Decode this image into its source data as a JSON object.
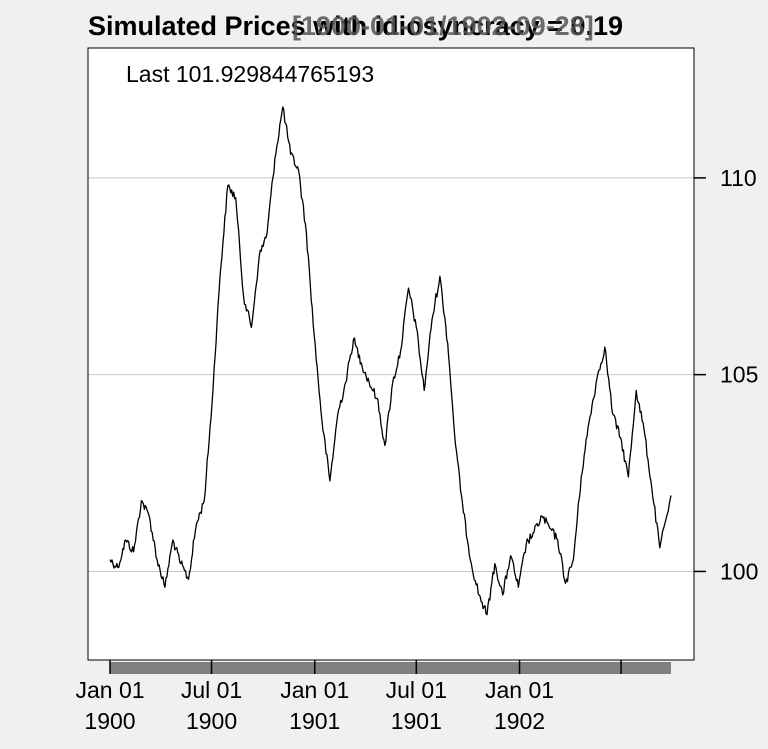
{
  "chart_data": {
    "type": "line",
    "title": "Simulated Prices with idiosyncracy = 0.19",
    "title_range": "[1900-01-01/1902-09-28]",
    "annotation": "Last 101.929844765193",
    "x_range": [
      "1900-01-01",
      "1902-09-28"
    ],
    "ylim": [
      97.75,
      113.3
    ],
    "y_ticks": [
      100,
      105,
      110
    ],
    "y_tick_labels": [
      "100",
      "105",
      "110"
    ],
    "x_ticks": [
      "1900-01-01",
      "1900-07-01",
      "1901-01-01",
      "1901-07-01",
      "1902-01-01"
    ],
    "x_tick_labels": [
      {
        "month": "Jan 01",
        "year": "1900"
      },
      {
        "month": "Jul 01",
        "year": "1900"
      },
      {
        "month": "Jan 01",
        "year": "1901"
      },
      {
        "month": "Jul 01",
        "year": "1901"
      },
      {
        "month": "Jan 01",
        "year": "1902"
      }
    ],
    "y_axis_side": "right",
    "grid": "horizontal",
    "line_color": "#000000",
    "grid_color": "#c8c8c8",
    "x_band_color": "#7f7f7f",
    "series": [
      {
        "x": [
          "1900-01-01",
          "1900-01-15",
          "1900-01-29",
          "1900-02-12",
          "1900-02-26",
          "1900-03-12",
          "1900-03-26",
          "1900-04-09",
          "1900-04-23",
          "1900-05-07",
          "1900-05-21",
          "1900-06-04",
          "1900-06-18",
          "1900-07-02",
          "1900-07-16",
          "1900-07-30",
          "1900-08-13",
          "1900-08-27",
          "1900-09-10",
          "1900-09-24",
          "1900-10-08",
          "1900-10-22",
          "1900-11-05",
          "1900-11-19",
          "1900-12-03",
          "1900-12-17",
          "1900-12-31",
          "1901-01-14",
          "1901-01-28",
          "1901-02-11",
          "1901-02-25",
          "1901-03-11",
          "1901-03-25",
          "1901-04-08",
          "1901-04-22",
          "1901-05-06",
          "1901-05-20",
          "1901-06-03",
          "1901-06-17",
          "1901-07-01",
          "1901-07-15",
          "1901-07-29",
          "1901-08-12",
          "1901-08-26",
          "1901-09-09",
          "1901-09-23",
          "1901-10-07",
          "1901-10-21",
          "1901-11-04",
          "1901-11-18",
          "1901-12-02",
          "1901-12-16",
          "1901-12-30",
          "1902-01-13",
          "1902-01-27",
          "1902-02-10",
          "1902-02-24",
          "1902-03-10",
          "1902-03-24",
          "1902-04-07",
          "1902-04-21",
          "1902-05-05",
          "1902-05-19",
          "1902-06-02",
          "1902-06-16",
          "1902-06-30",
          "1902-07-14",
          "1902-07-28",
          "1902-08-11",
          "1902-08-25",
          "1902-09-08",
          "1902-09-28"
        ],
        "y": [
          100.3,
          100.1,
          100.8,
          100.5,
          101.8,
          101.4,
          100.3,
          99.6,
          100.8,
          100.2,
          99.8,
          101.2,
          101.8,
          104.3,
          107.5,
          109.8,
          109.5,
          107.0,
          106.2,
          108.0,
          108.6,
          110.5,
          111.8,
          110.6,
          110.2,
          108.6,
          106.0,
          103.8,
          102.3,
          104.0,
          104.8,
          105.9,
          105.3,
          104.8,
          104.4,
          103.2,
          104.8,
          105.6,
          107.2,
          106.2,
          104.6,
          106.4,
          107.5,
          105.8,
          103.2,
          101.5,
          100.2,
          99.4,
          98.9,
          100.2,
          99.4,
          100.4,
          99.6,
          100.7,
          101.0,
          101.4,
          101.1,
          100.8,
          99.7,
          100.3,
          102.4,
          103.8,
          104.9,
          105.7,
          104.0,
          103.4,
          102.4,
          104.6,
          103.6,
          102.1,
          100.6,
          101.93
        ]
      }
    ]
  }
}
